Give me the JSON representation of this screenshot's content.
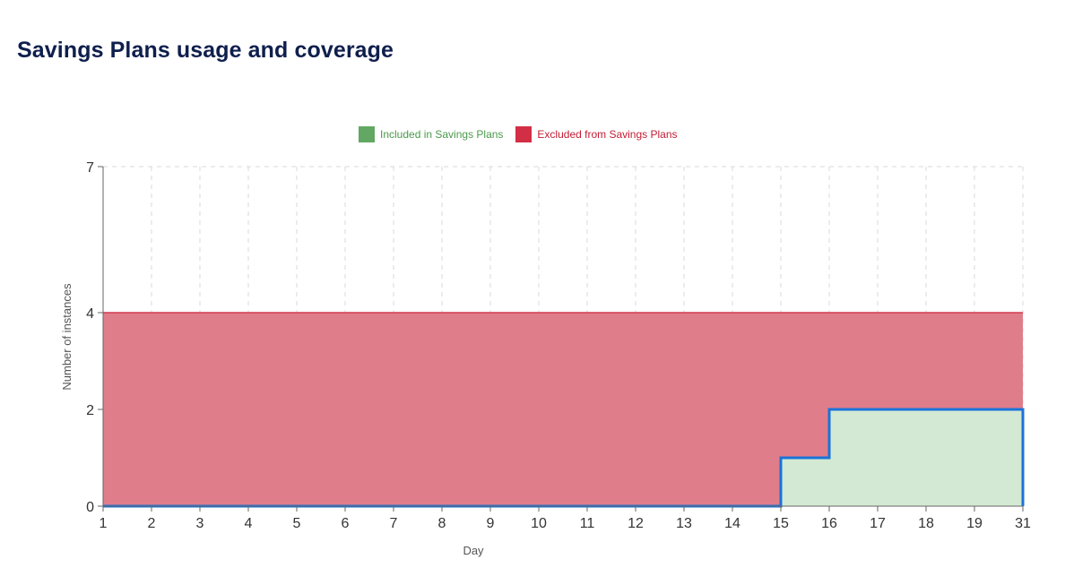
{
  "header": {
    "title": "Savings Plans usage and coverage"
  },
  "legend": {
    "items": [
      {
        "label": "Included in Savings Plans",
        "color": "#62a862",
        "text_color": "#4a9a4a"
      },
      {
        "label": "Excluded from Savings Plans",
        "color": "#d22e45",
        "text_color": "#c21d35"
      }
    ]
  },
  "colors": {
    "included_fill": "#d3e9d3",
    "included_line": "#1a73d9",
    "excluded_fill": "#e07d8b",
    "excluded_line": "#d23c50",
    "grid": "#d9d9d9",
    "axis": "#666666"
  },
  "chart_data": {
    "type": "area",
    "step": true,
    "stacked": false,
    "xlabel": "Day",
    "ylabel": "Number of instances",
    "x_ticks": [
      1,
      2,
      3,
      4,
      5,
      6,
      7,
      8,
      9,
      10,
      11,
      12,
      13,
      14,
      15,
      16,
      17,
      18,
      19,
      31
    ],
    "y_ticks": [
      0,
      2,
      4,
      7
    ],
    "ylim": [
      0,
      7
    ],
    "grid": true,
    "legend_position": "top",
    "series": [
      {
        "name": "Excluded from Savings Plans",
        "points": [
          [
            1,
            4
          ],
          [
            31,
            4
          ]
        ]
      },
      {
        "name": "Included in Savings Plans",
        "points": [
          [
            1,
            0
          ],
          [
            15,
            0
          ],
          [
            15,
            1
          ],
          [
            16,
            1
          ],
          [
            16,
            2
          ],
          [
            31,
            2
          ],
          [
            31,
            0
          ]
        ]
      }
    ]
  }
}
